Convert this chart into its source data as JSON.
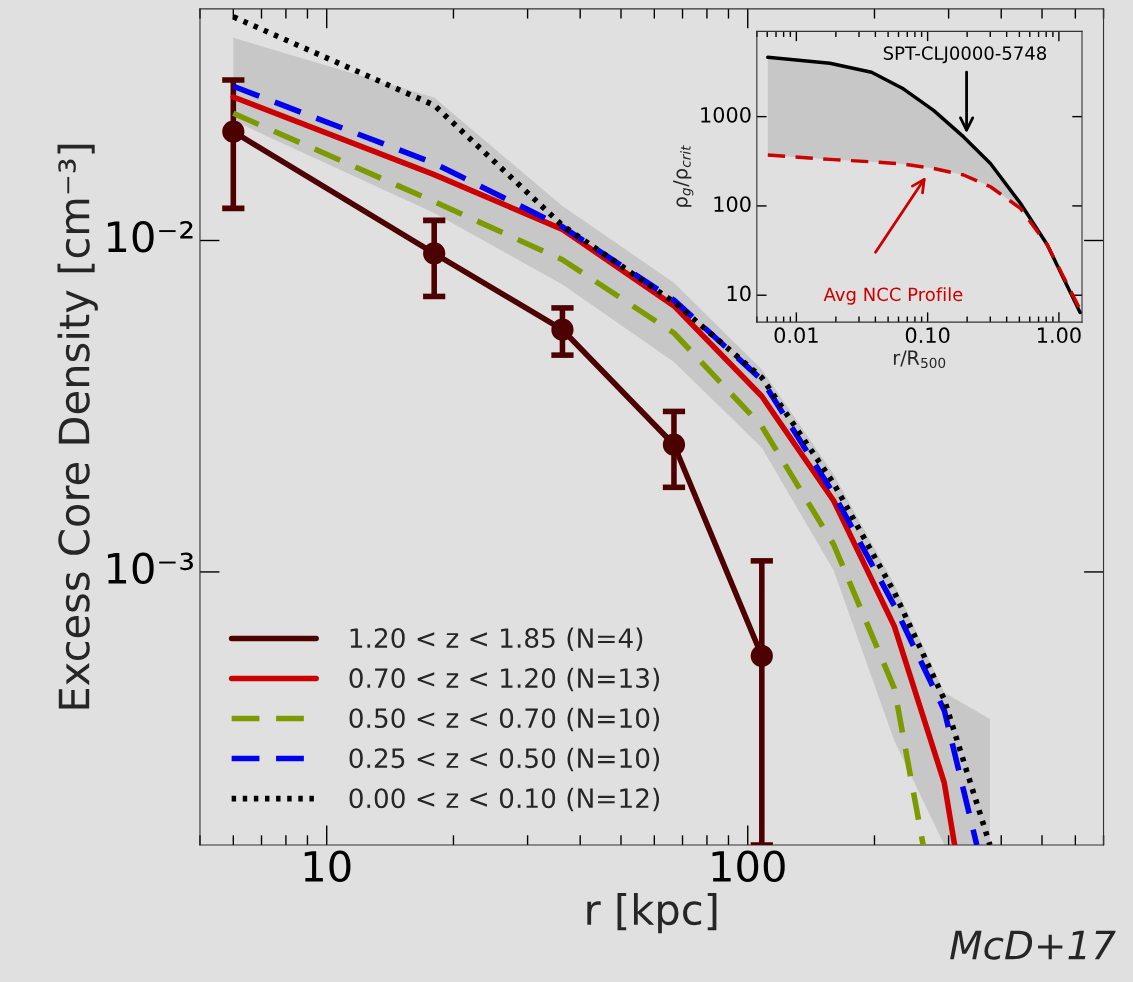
{
  "chart_data": [
    {
      "type": "line",
      "xlabel": "r [kpc]",
      "ylabel": "Excess Core Density [cm⁻³]",
      "log": "xy",
      "xlim": [
        5,
        700
      ],
      "ylim": [
        0.00015,
        0.05
      ],
      "xticks": [
        10,
        100
      ],
      "yticks": [
        {
          "value": 0.01,
          "label": "10⁻²"
        },
        {
          "value": 0.001,
          "label": "10⁻³"
        }
      ],
      "grid": false,
      "legend": "bottom left",
      "annotations": [
        "McD+17"
      ],
      "series": [
        {
          "name": "1.20 < z < 1.85 (N=4)",
          "color": "#4d0000",
          "marker": "circle",
          "line_style": "solid",
          "x": [
            6.0,
            18.0,
            36.3,
            66.8,
            108
          ],
          "values": [
            0.0213,
            0.00914,
            0.00538,
            0.00242,
            0.000558
          ],
          "errors": [
            [
              0.0125,
              0.0305
            ],
            [
              0.00678,
              0.0115
            ],
            [
              0.00451,
              0.00626
            ],
            [
              0.0018,
              0.00305
            ],
            [
              0.00015,
              0.00108
            ]
          ]
        },
        {
          "name": "0.70 < z < 1.20 (N=13)",
          "color": "#cc0000",
          "line_style": "solid",
          "x": [
            6.0,
            18.0,
            36.3,
            66.8,
            108,
            160,
            223,
            293,
            310
          ],
          "values": [
            0.0271,
            0.0158,
            0.0108,
            0.00635,
            0.00339,
            0.00164,
            0.000685,
            0.000231,
            0.00015
          ]
        },
        {
          "name": "0.50 < z < 0.70 (N=10)",
          "color": "#7f9a00",
          "line_style": "dashed",
          "x": [
            6.0,
            18.0,
            36.3,
            66.8,
            108,
            160,
            223,
            261
          ],
          "values": [
            0.0242,
            0.0131,
            0.00875,
            0.00526,
            0.00275,
            0.00121,
            0.000445,
            0.00015
          ]
        },
        {
          "name": "0.25 < z < 0.50 (N=10)",
          "color": "#0000ee",
          "line_style": "dashed",
          "x": [
            6.0,
            18.0,
            36.3,
            66.8,
            108,
            160,
            223,
            293,
            350
          ],
          "values": [
            0.0292,
            0.0171,
            0.011,
            0.00661,
            0.0038,
            0.00172,
            0.00079,
            0.000382,
            0.00015
          ]
        },
        {
          "name": "0.00 < z < 0.10 (N=12)",
          "color": "#000000",
          "line_style": "dotted",
          "x": [
            6.0,
            18.0,
            36.3,
            66.8,
            108,
            160,
            223,
            293,
            376
          ],
          "values": [
            0.0473,
            0.0256,
            0.0111,
            0.00652,
            0.00386,
            0.00185,
            0.000867,
            0.000412,
            0.00015
          ],
          "lower": [
            0.023,
            0.0121,
            0.00736,
            0.0043,
            0.00237,
            0.00101,
            0.000309,
            0.00015,
            0.00015
          ],
          "upper": [
            0.0409,
            0.027,
            0.0127,
            0.00746,
            0.00408,
            0.00197,
            0.00092,
            0.000433,
            0.00036
          ]
        }
      ]
    },
    {
      "type": "line",
      "xlabel": "r/R$_{500}$",
      "ylabel": "ρ$_{g}$/ρ$_{crit}$",
      "log": "xy",
      "xlim": [
        0.005,
        1.5
      ],
      "ylim": [
        5,
        9000
      ],
      "xticks": [
        0.01,
        {
          "value": 0.1,
          "label": "0.10"
        },
        {
          "value": 1,
          "label": "1.00"
        }
      ],
      "yticks": [
        10,
        100,
        1000
      ],
      "grid": false,
      "legend": false,
      "annotations": [
        "SPT-CLJ0000-5748",
        "Avg NCC Profile"
      ],
      "series": [
        {
          "color": "#000000",
          "line_style": "solid",
          "x": [
            0.00606,
            0.018,
            0.0374,
            0.0653,
            0.111,
            0.188,
            0.301,
            0.509,
            0.815,
            1.45
          ],
          "values": [
            4620,
            3960,
            3140,
            2050,
            1175,
            593,
            299,
            107,
            36.7,
            6.4
          ],
          "lower": [
            371,
            332,
            312,
            294,
            263,
            222,
            164,
            94,
            36.7,
            6.4
          ],
          "upper": [
            4620,
            3960,
            3140,
            2050,
            1175,
            593,
            299,
            107,
            36.7,
            6.4
          ]
        },
        {
          "color": "#cc0000",
          "line_style": "dashed",
          "x": [
            0.00606,
            0.018,
            0.0374,
            0.0653,
            0.111,
            0.188,
            0.301,
            0.509,
            0.815,
            1.45
          ],
          "values": [
            371,
            332,
            312,
            294,
            263,
            222,
            164,
            94,
            36.7,
            6.9
          ]
        }
      ]
    }
  ]
}
